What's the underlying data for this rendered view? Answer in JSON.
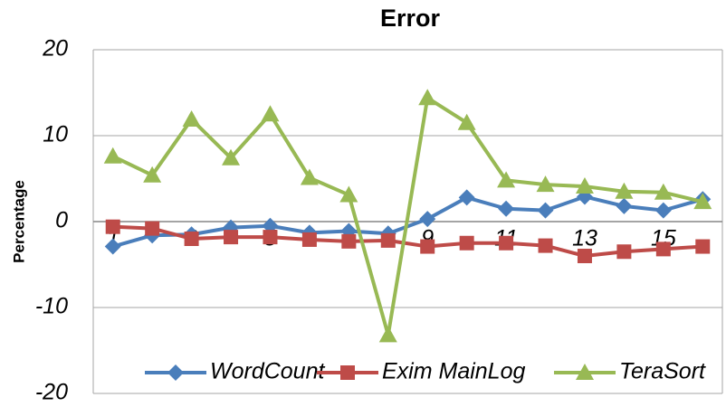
{
  "chart_data": {
    "type": "line",
    "title": "Error",
    "y_label": "Percentage",
    "categories": [
      "1",
      null,
      "3",
      null,
      "5",
      null,
      "7",
      null,
      "9",
      null,
      "11",
      null,
      "13",
      null,
      "15",
      null
    ],
    "series": [
      {
        "name": "WordCount",
        "color": "#4a7ebb",
        "marker": "diamond",
        "values": [
          -2.9,
          -1.6,
          -1.5,
          -0.7,
          -0.5,
          -1.3,
          -1.1,
          -1.4,
          0.3,
          2.8,
          1.5,
          1.3,
          2.9,
          1.8,
          1.3,
          2.6
        ]
      },
      {
        "name": "Exim MainLog",
        "color": "#be4b48",
        "marker": "square",
        "values": [
          -0.6,
          -0.8,
          -2.0,
          -1.8,
          -1.8,
          -2.1,
          -2.3,
          -2.2,
          -2.9,
          -2.5,
          -2.5,
          -2.8,
          -4.0,
          -3.5,
          -3.2,
          -2.9
        ]
      },
      {
        "name": "TeraSort",
        "color": "#98b954",
        "marker": "triangle",
        "values": [
          7.6,
          5.4,
          11.9,
          7.4,
          12.5,
          5.1,
          3.1,
          -13.2,
          14.4,
          11.5,
          4.8,
          4.3,
          4.1,
          3.5,
          3.4,
          2.3
        ]
      }
    ],
    "ylim": [
      -20,
      20
    ],
    "yticks": [
      -20,
      -10,
      0,
      10,
      20
    ],
    "grid": true,
    "legend": "lower center"
  }
}
